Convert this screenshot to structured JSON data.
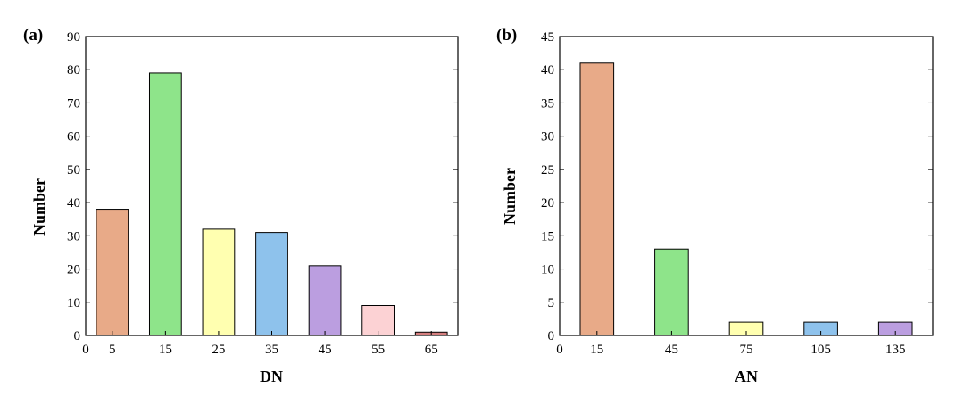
{
  "chart_data": [
    {
      "panel": "(a)",
      "type": "bar",
      "xlabel": "DN",
      "ylabel": "Number",
      "ylim": [
        0,
        90
      ],
      "yticks": [
        0,
        10,
        20,
        30,
        40,
        50,
        60,
        70,
        80,
        90
      ],
      "xlim": [
        0,
        70
      ],
      "xticks": [
        0,
        5,
        15,
        25,
        35,
        45,
        55,
        65
      ],
      "bar_width": 6,
      "categories": [
        5,
        15,
        25,
        35,
        45,
        55,
        65
      ],
      "values": [
        38,
        79,
        32,
        31,
        21,
        9,
        1
      ],
      "colors": [
        "#e8aa88",
        "#8ee48a",
        "#ffffb0",
        "#8ec2ec",
        "#bb9ee0",
        "#fcd2d4",
        "#d57e7e"
      ],
      "grid": false,
      "legend": "none"
    },
    {
      "panel": "(b)",
      "type": "bar",
      "xlabel": "AN",
      "ylabel": "Number",
      "ylim": [
        0,
        45
      ],
      "yticks": [
        0,
        5,
        10,
        15,
        20,
        25,
        30,
        35,
        40,
        45
      ],
      "xlim": [
        0,
        150
      ],
      "xticks": [
        0,
        15,
        45,
        75,
        105,
        135
      ],
      "bar_width": 13.5,
      "categories": [
        15,
        45,
        75,
        105,
        135
      ],
      "values": [
        41,
        13,
        2,
        2,
        2
      ],
      "colors": [
        "#e8aa88",
        "#8ee48a",
        "#ffffb0",
        "#8ec2ec",
        "#bb9ee0"
      ],
      "grid": false,
      "legend": "none"
    }
  ]
}
